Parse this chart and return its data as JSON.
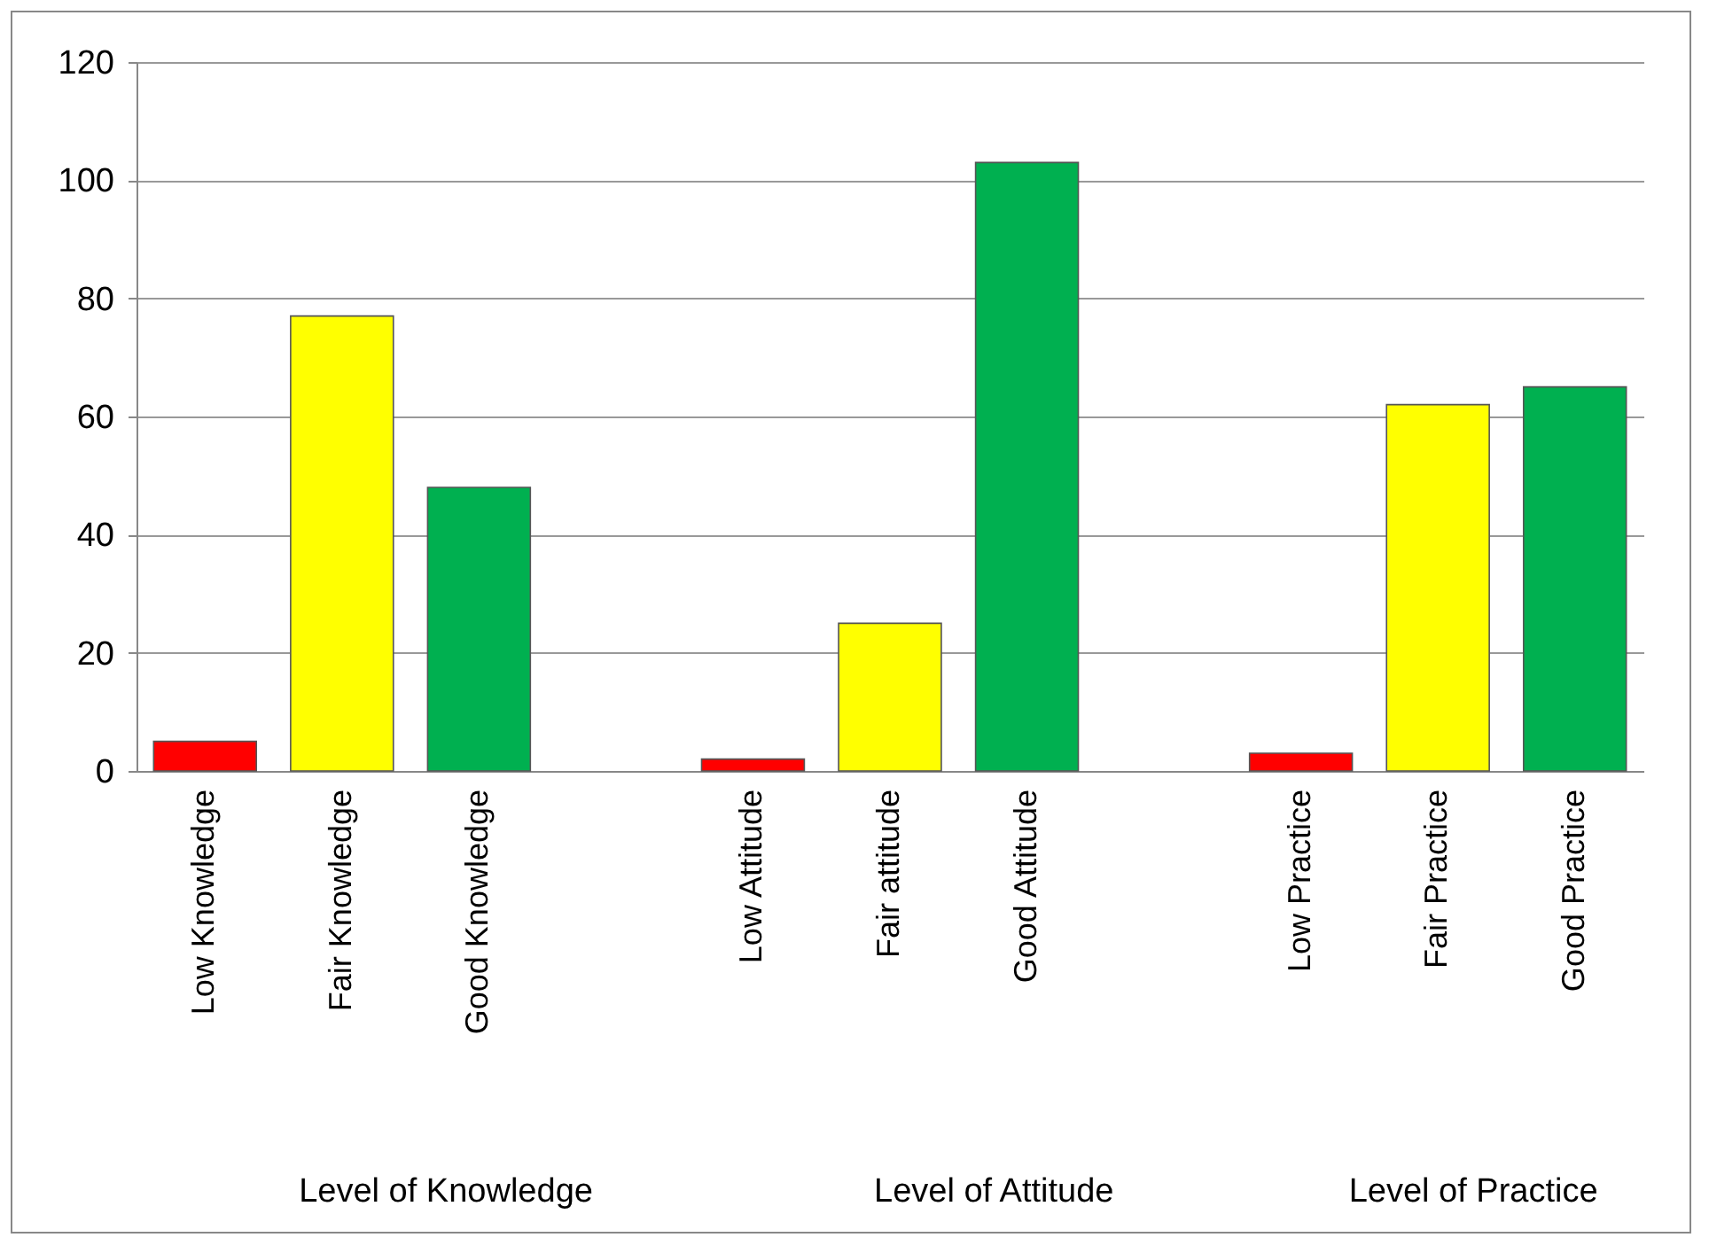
{
  "chart_data": {
    "type": "bar",
    "categories": [
      "Low Knowledge",
      "Fair Knowledge",
      "Good Knowledge",
      null,
      "Low Attitude",
      "Fair attitude",
      "Good Attitude",
      null,
      "Low Practice",
      "Fair Practice",
      "Good Practice"
    ],
    "values": [
      5,
      77,
      48,
      null,
      2,
      25,
      103,
      null,
      3,
      62,
      65
    ],
    "colors": [
      "#ff0000",
      "#ffff00",
      "#00b050",
      null,
      "#ff0000",
      "#ffff00",
      "#00b050",
      null,
      "#ff0000",
      "#ffff00",
      "#00b050"
    ],
    "ylim": [
      0,
      120
    ],
    "yticks": [
      0,
      20,
      40,
      60,
      80,
      100,
      120
    ],
    "grid": "y",
    "legend": false,
    "annotations": [
      "Level of Knowledge",
      "Level of Attitude",
      "Level of Practice"
    ]
  }
}
